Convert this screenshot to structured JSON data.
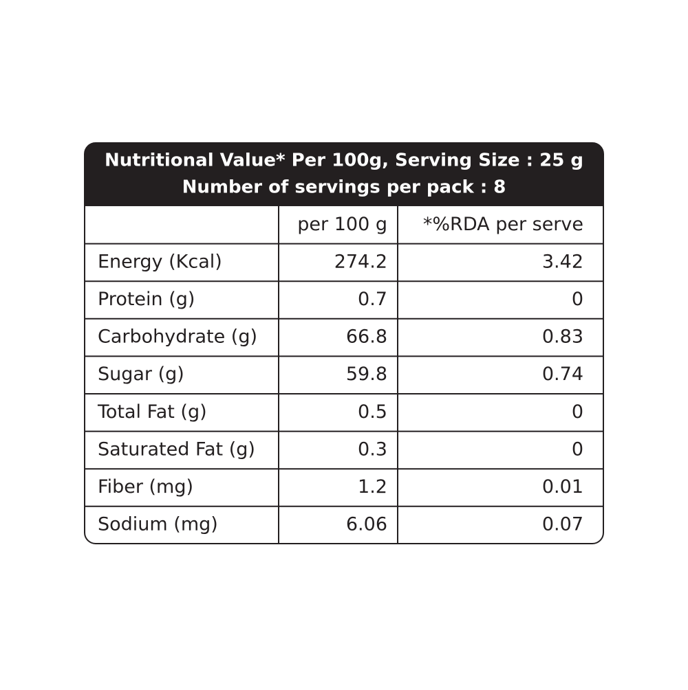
{
  "header": {
    "lines": [
      "Nutritional Value* Per 100g, Serving Size : 25 g",
      "Number of servings per pack : 8"
    ]
  },
  "table": {
    "columns": [
      "per 100 g",
      "*%RDA per serve"
    ],
    "rows": [
      [
        "Energy (Kcal)",
        "274.2",
        "3.42"
      ],
      [
        "Protein (g)",
        "0.7",
        "0"
      ],
      [
        "Carbohydrate (g)",
        "66.8",
        "0.83"
      ],
      [
        "Sugar (g)",
        "59.8",
        "0.74"
      ],
      [
        "Total Fat (g)",
        "0.5",
        "0"
      ],
      [
        "Saturated Fat (g)",
        "0.3",
        "0"
      ],
      [
        "Fiber (mg)",
        "1.2",
        "0.01"
      ],
      [
        "Sodium (mg)",
        "6.06",
        "0.07"
      ]
    ]
  }
}
